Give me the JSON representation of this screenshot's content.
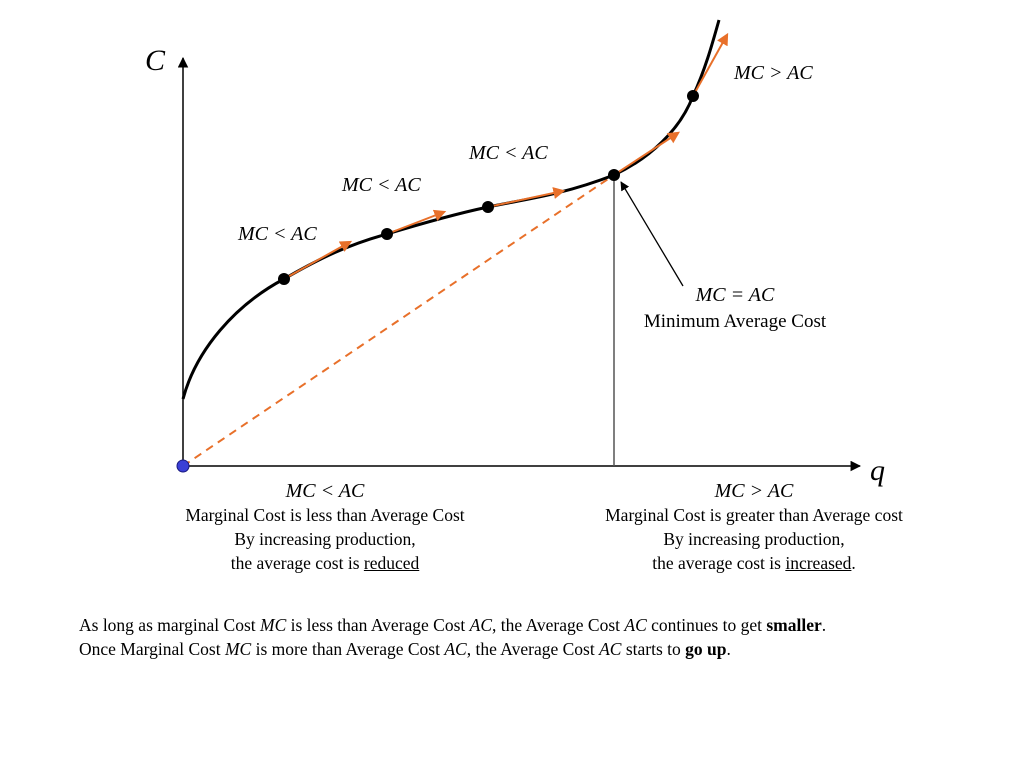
{
  "axes": {
    "y_label": "C",
    "x_label": "q"
  },
  "curve_points": [
    {
      "label": "MC < AC"
    },
    {
      "label": "MC < AC"
    },
    {
      "label": "MC < AC"
    },
    {
      "label": "MC = AC",
      "note": "Minimum Average Cost"
    },
    {
      "label": "MC > AC"
    }
  ],
  "regions": {
    "left": {
      "relation": "MC < AC",
      "line1": "Marginal Cost is less than Average Cost",
      "line2": "By increasing production,",
      "line3_prefix": "the average cost is ",
      "line3_emph": "reduced",
      "line3_suffix": ""
    },
    "right": {
      "relation": "MC > AC",
      "line1": "Marginal Cost is greater than Average cost",
      "line2": "By increasing production,",
      "line3_prefix": "the average cost is ",
      "line3_emph": "increased",
      "line3_suffix": "."
    }
  },
  "summary": {
    "line1": [
      "As long as marginal Cost ",
      "MC",
      " is less than Average Cost ",
      "AC",
      ", the Average Cost ",
      "AC",
      " continues to get ",
      "smaller",
      "."
    ],
    "line2": [
      "Once Marginal Cost ",
      "MC",
      " is more than Average Cost ",
      "AC",
      ", the Average Cost ",
      "AC",
      " starts to ",
      "go up",
      "."
    ]
  },
  "colors": {
    "curve": "#000000",
    "tangent": "#e8702a",
    "axis": "#000000",
    "origin": "#3b3fd6",
    "vline": "#555555"
  }
}
